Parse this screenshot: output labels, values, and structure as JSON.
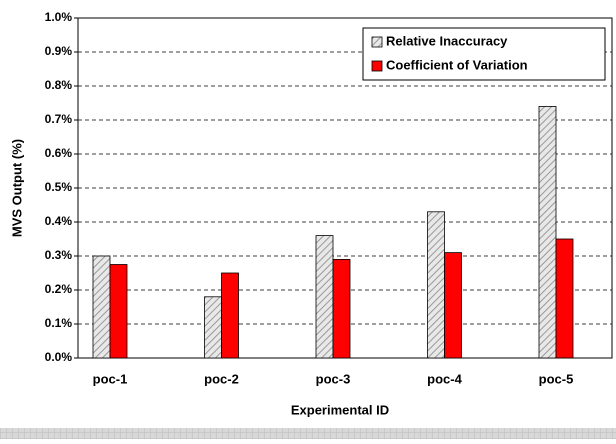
{
  "chart_data": {
    "type": "bar",
    "x_label": "Experimental ID",
    "y_label": "MVS Output (%)",
    "categories": [
      "poc-1",
      "poc-2",
      "poc-3",
      "poc-4",
      "poc-5"
    ],
    "series": [
      {
        "name": "Relative Inaccuracy",
        "color": "#d9d9d9",
        "values": [
          0.3,
          0.18,
          0.36,
          0.43,
          0.74
        ]
      },
      {
        "name": "Coefficient of Variation",
        "color": "#ff0000",
        "values": [
          0.275,
          0.25,
          0.29,
          0.31,
          0.35
        ]
      }
    ],
    "ylim": [
      0,
      1.0
    ],
    "yticks": [
      {
        "value": 0,
        "label": "0.0%"
      },
      {
        "value": 0.1,
        "label": "0.1%"
      },
      {
        "value": 0.2,
        "label": "0.2%"
      },
      {
        "value": 0.3,
        "label": "0.3%"
      },
      {
        "value": 0.4,
        "label": "0.4%"
      },
      {
        "value": 0.5,
        "label": "0.5%"
      },
      {
        "value": 0.6,
        "label": "0.6%"
      },
      {
        "value": 0.7,
        "label": "0.7%"
      },
      {
        "value": 0.8,
        "label": "0.8%"
      },
      {
        "value": 0.9,
        "label": "0.9%"
      },
      {
        "value": 1.0,
        "label": "1.0%"
      }
    ],
    "grid": true,
    "legend": "upper right"
  }
}
